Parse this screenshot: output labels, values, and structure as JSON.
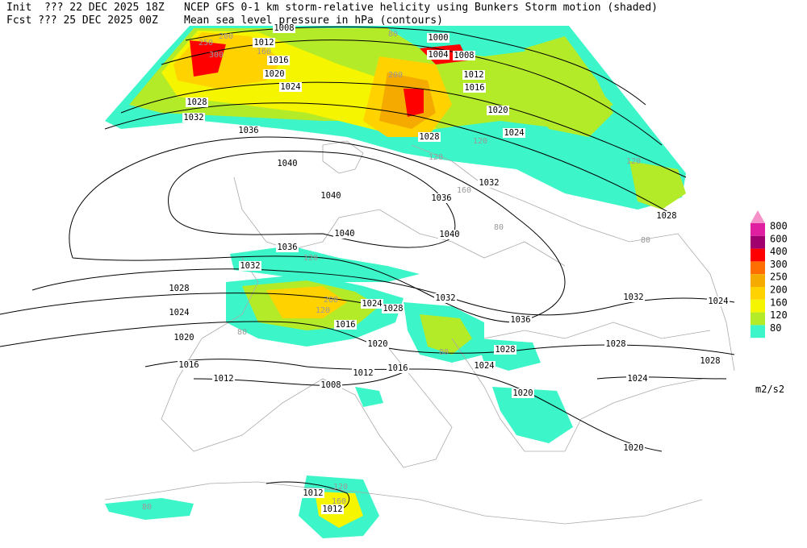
{
  "header": {
    "init": "Init  ??? 22 DEC 2025 18Z",
    "fcst": "Fcst ??? 25 DEC 2025 00Z",
    "title": "NCEP GFS 0-1 km storm-relative helicity using Bunkers Storm motion (shaded)",
    "subtitle": "Mean sea level pressure in hPa (contours)"
  },
  "legend": {
    "top_color": "#f590c8",
    "unit": "m2/s2",
    "levels": [
      {
        "value": 800,
        "color": "#e01ea0"
      },
      {
        "value": 600,
        "color": "#a0006e"
      },
      {
        "value": 400,
        "color": "#ff0000"
      },
      {
        "value": 300,
        "color": "#ff6e00"
      },
      {
        "value": 250,
        "color": "#f5aa00"
      },
      {
        "value": 200,
        "color": "#ffd200"
      },
      {
        "value": 160,
        "color": "#f5f500"
      },
      {
        "value": 120,
        "color": "#b4eb28"
      },
      {
        "value": 80,
        "color": "#3cf5c8"
      }
    ]
  },
  "isobar_labels": [
    1008,
    1012,
    1016,
    1020,
    1024,
    1028,
    1032,
    1036,
    1040,
    1040,
    1040,
    1040,
    1036,
    1032,
    1028,
    1028,
    1024,
    1020,
    1016,
    1012,
    1008,
    1004,
    1000,
    1036,
    1032,
    1028,
    1024,
    1020,
    1016,
    1012,
    1008,
    1012,
    1016,
    1020,
    1016,
    1024,
    1028,
    1032,
    1036,
    1032,
    1028,
    1028,
    1024,
    1020,
    1024,
    1020,
    1024,
    1028,
    1012,
    1012
  ],
  "helicity_labels": [
    250,
    300,
    200,
    160,
    80,
    120,
    160,
    200,
    80,
    120,
    80,
    120,
    80,
    120,
    80,
    200,
    120,
    160,
    120,
    80
  ]
}
